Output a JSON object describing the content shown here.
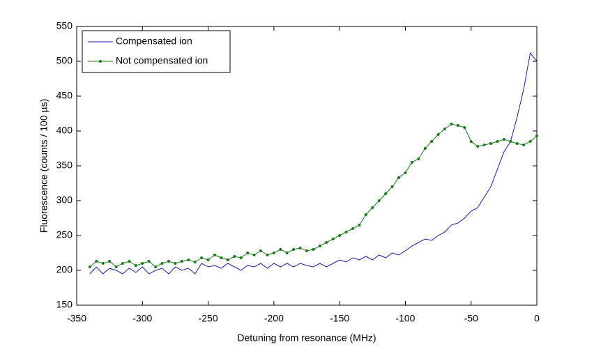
{
  "chart_data": {
    "type": "line",
    "xlabel": "Detuning from resonance (MHz)",
    "ylabel": "Fluorescence (counts / 100 µs)",
    "x": [
      -340,
      -335,
      -330,
      -325,
      -320,
      -315,
      -310,
      -305,
      -300,
      -295,
      -290,
      -285,
      -280,
      -275,
      -270,
      -265,
      -260,
      -255,
      -250,
      -245,
      -240,
      -235,
      -230,
      -225,
      -220,
      -215,
      -210,
      -205,
      -200,
      -195,
      -190,
      -185,
      -180,
      -175,
      -170,
      -165,
      -160,
      -155,
      -150,
      -145,
      -140,
      -135,
      -130,
      -125,
      -120,
      -115,
      -110,
      -105,
      -100,
      -95,
      -90,
      -85,
      -80,
      -75,
      -70,
      -65,
      -60,
      -55,
      -50,
      -45,
      -40,
      -35,
      -30,
      -25,
      -20,
      -15,
      -10,
      -5,
      0
    ],
    "series": [
      {
        "name": "Compensated ion",
        "color": "#1a1aa0",
        "marker": "none",
        "values": [
          195,
          205,
          195,
          203,
          200,
          195,
          203,
          197,
          205,
          195,
          200,
          203,
          195,
          205,
          200,
          203,
          195,
          210,
          205,
          207,
          203,
          210,
          205,
          200,
          207,
          205,
          210,
          203,
          210,
          205,
          210,
          205,
          210,
          207,
          205,
          210,
          205,
          210,
          215,
          212,
          218,
          215,
          220,
          215,
          222,
          218,
          225,
          222,
          228,
          235,
          240,
          245,
          243,
          250,
          255,
          265,
          268,
          275,
          285,
          290,
          305,
          320,
          345,
          370,
          385,
          420,
          460,
          512,
          500
        ]
      },
      {
        "name": "Not compensated ion",
        "color": "#1a7a1a",
        "marker": "dot",
        "values": [
          205,
          213,
          210,
          213,
          205,
          210,
          213,
          207,
          210,
          213,
          205,
          210,
          213,
          210,
          213,
          215,
          212,
          218,
          215,
          222,
          218,
          215,
          220,
          218,
          225,
          222,
          228,
          222,
          225,
          230,
          225,
          230,
          232,
          228,
          230,
          235,
          240,
          245,
          250,
          255,
          260,
          265,
          280,
          290,
          300,
          310,
          320,
          333,
          340,
          355,
          360,
          375,
          385,
          395,
          403,
          410,
          408,
          405,
          385,
          378,
          380,
          382,
          385,
          388,
          385,
          382,
          380,
          385,
          393
        ]
      }
    ],
    "xlim": [
      -350,
      0
    ],
    "xticks": [
      -350,
      -300,
      -250,
      -200,
      -150,
      -100,
      -50,
      0
    ],
    "ylim": [
      150,
      550
    ],
    "yticks": [
      150,
      200,
      250,
      300,
      350,
      400,
      450,
      500,
      550
    ],
    "legend": "northwest",
    "grid": false
  }
}
